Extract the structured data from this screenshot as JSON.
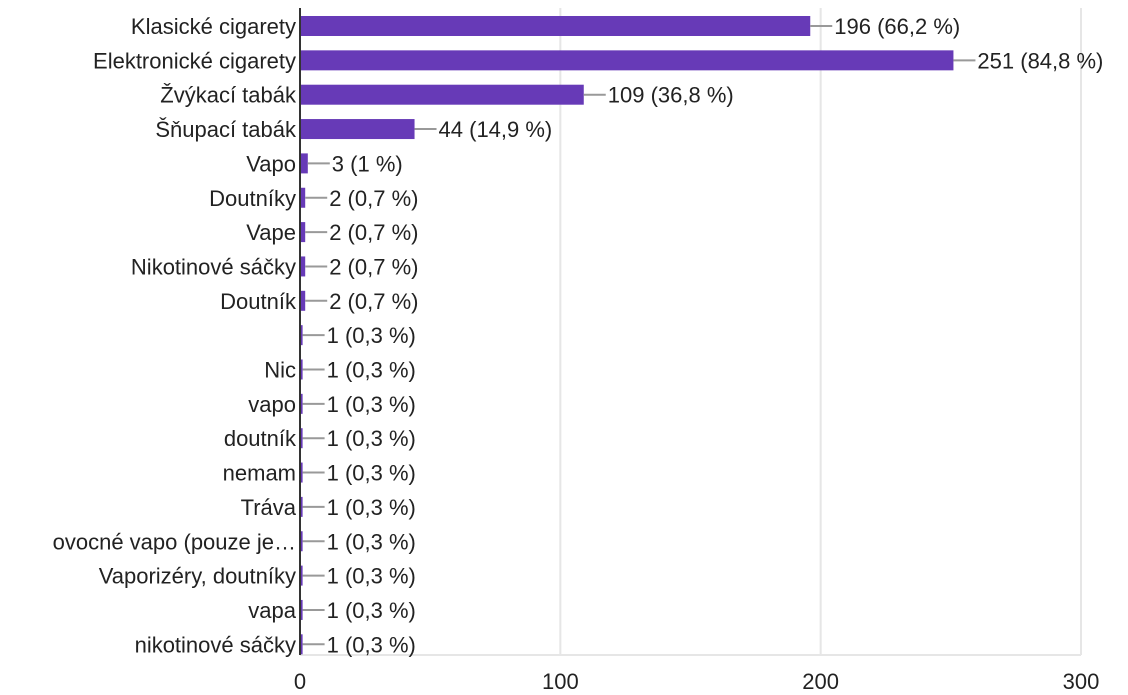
{
  "colors": {
    "bar": "#673ab7",
    "grid": "#e6e6e6",
    "axis": "#333333",
    "leader": "#999999",
    "text": "#222222"
  },
  "chart_data": {
    "type": "bar",
    "orientation": "horizontal",
    "categories": [
      "Klasické cigarety",
      "Elektronické cigarety",
      "Žvýkací tabák",
      "Šňupací tabák",
      "Vapo",
      "Doutníky",
      "Vape",
      "Nikotinové sáčky",
      "Doutník",
      "",
      "Nic",
      "vapo",
      "doutník",
      "nemam",
      "Tráva",
      "ovocné vapo (pouze je…",
      "Vaporizéry, doutníky",
      "vapa",
      "nikotinové sáčky"
    ],
    "values": [
      196,
      251,
      109,
      44,
      3,
      2,
      2,
      2,
      2,
      1,
      1,
      1,
      1,
      1,
      1,
      1,
      1,
      1,
      1
    ],
    "data_labels": [
      "196 (66,2 %)",
      "251 (84,8 %)",
      "109 (36,8 %)",
      "44 (14,9 %)",
      "3 (1 %)",
      "2 (0,7 %)",
      "2 (0,7 %)",
      "2 (0,7 %)",
      "2 (0,7 %)",
      "1 (0,3 %)",
      "1 (0,3 %)",
      "1 (0,3 %)",
      "1 (0,3 %)",
      "1 (0,3 %)",
      "1 (0,3 %)",
      "1 (0,3 %)",
      "1 (0,3 %)",
      "1 (0,3 %)",
      "1 (0,3 %)"
    ],
    "xlim": [
      0,
      300
    ],
    "xticks": [
      0,
      100,
      200,
      300
    ],
    "xtick_labels": [
      "0",
      "100",
      "200",
      "300"
    ],
    "grid": true
  }
}
